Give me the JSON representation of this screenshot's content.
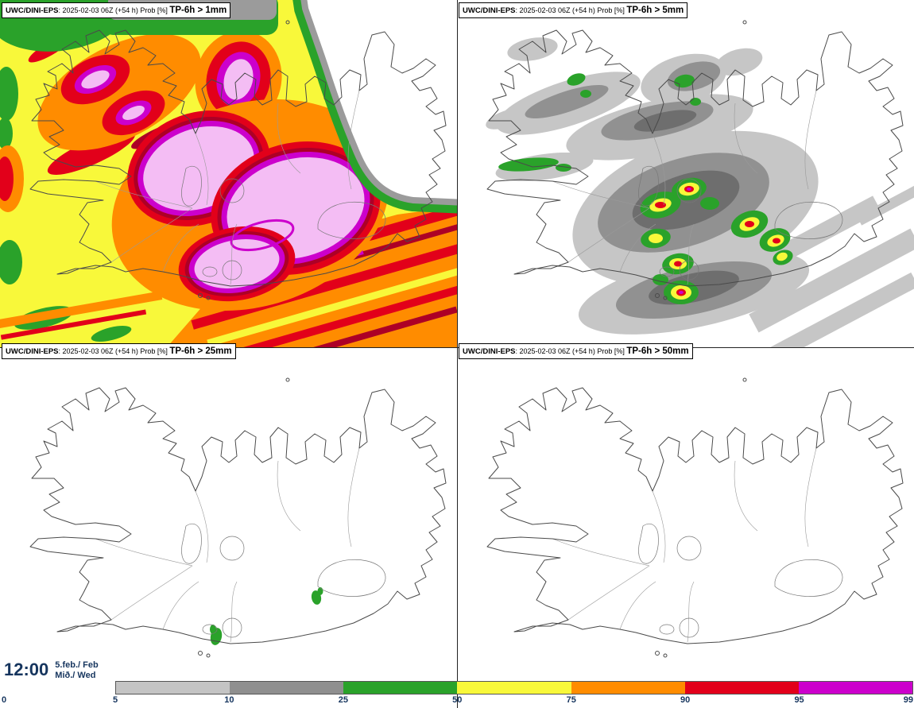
{
  "panels": [
    {
      "model": "UWC/DINI-EPS",
      "details": ": 2025-02-03 06Z (+54 h) Prob [%] ",
      "threshold": "TP-6h > 1mm"
    },
    {
      "model": "UWC/DINI-EPS",
      "details": ": 2025-02-03 06Z (+54 h) Prob [%] ",
      "threshold": "TP-6h > 5mm"
    },
    {
      "model": "UWC/DINI-EPS",
      "details": ": 2025-02-03 06Z (+54 h) Prob [%] ",
      "threshold": "TP-6h > 25mm"
    },
    {
      "model": "UWC/DINI-EPS",
      "details": ": 2025-02-03 06Z (+54 h) Prob [%] ",
      "threshold": "TP-6h > 50mm"
    }
  ],
  "time": {
    "clock": "12:00",
    "date": "5.feb./ Feb",
    "weekday": "Mið./ Wed"
  },
  "legend": {
    "tick_labels": [
      "0",
      "5",
      "10",
      "25",
      "50",
      "75",
      "90",
      "95",
      "99"
    ],
    "segment_colors": [
      "#c4c4c4",
      "#8f8f8f",
      "#2aa22a",
      "#f8f83a",
      "#ff8c00",
      "#e2001a",
      "#cc00cc"
    ],
    "above_scale_color": "#f4bdf4",
    "unit": "%"
  },
  "colors": {
    "gray_light": "#c6c6c6",
    "gray_mid": "#919191",
    "gray_dark": "#6e6e6e",
    "green": "#2aa22a",
    "yellow": "#f8f83a",
    "orange": "#ff8c00",
    "red": "#e2001a",
    "crimson": "#ad0026",
    "magenta": "#cc00cc",
    "pink": "#f4bdf4",
    "text_navy": "#16355e"
  }
}
